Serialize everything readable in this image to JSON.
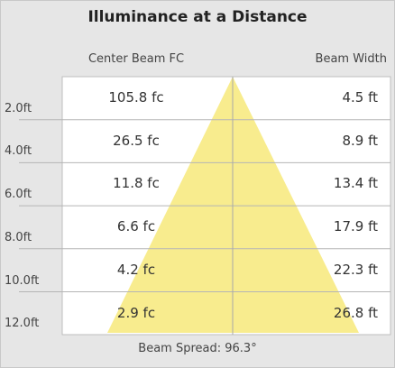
{
  "title": "Illuminance at a Distance",
  "headers": [
    "Center Beam FC",
    "Beam Width"
  ],
  "rows": [
    {
      "distance": "2.0ft",
      "center_beam_fc": "105.8 fc",
      "beam_width": "4.5 ft"
    },
    {
      "distance": "4.0ft",
      "center_beam_fc": "26.5 fc",
      "beam_width": "8.9 ft"
    },
    {
      "distance": "6.0ft",
      "center_beam_fc": "11.8 fc",
      "beam_width": "13.4 ft"
    },
    {
      "distance": "8.0ft",
      "center_beam_fc": "6.6 fc",
      "beam_width": "17.9 ft"
    },
    {
      "distance": "10.0ft",
      "center_beam_fc": "4.2 fc",
      "beam_width": "22.3 ft"
    },
    {
      "distance": "12.0ft",
      "center_beam_fc": "2.9 fc",
      "beam_width": "26.8 ft"
    }
  ],
  "footer": "Beam Spread: 96.3°"
}
